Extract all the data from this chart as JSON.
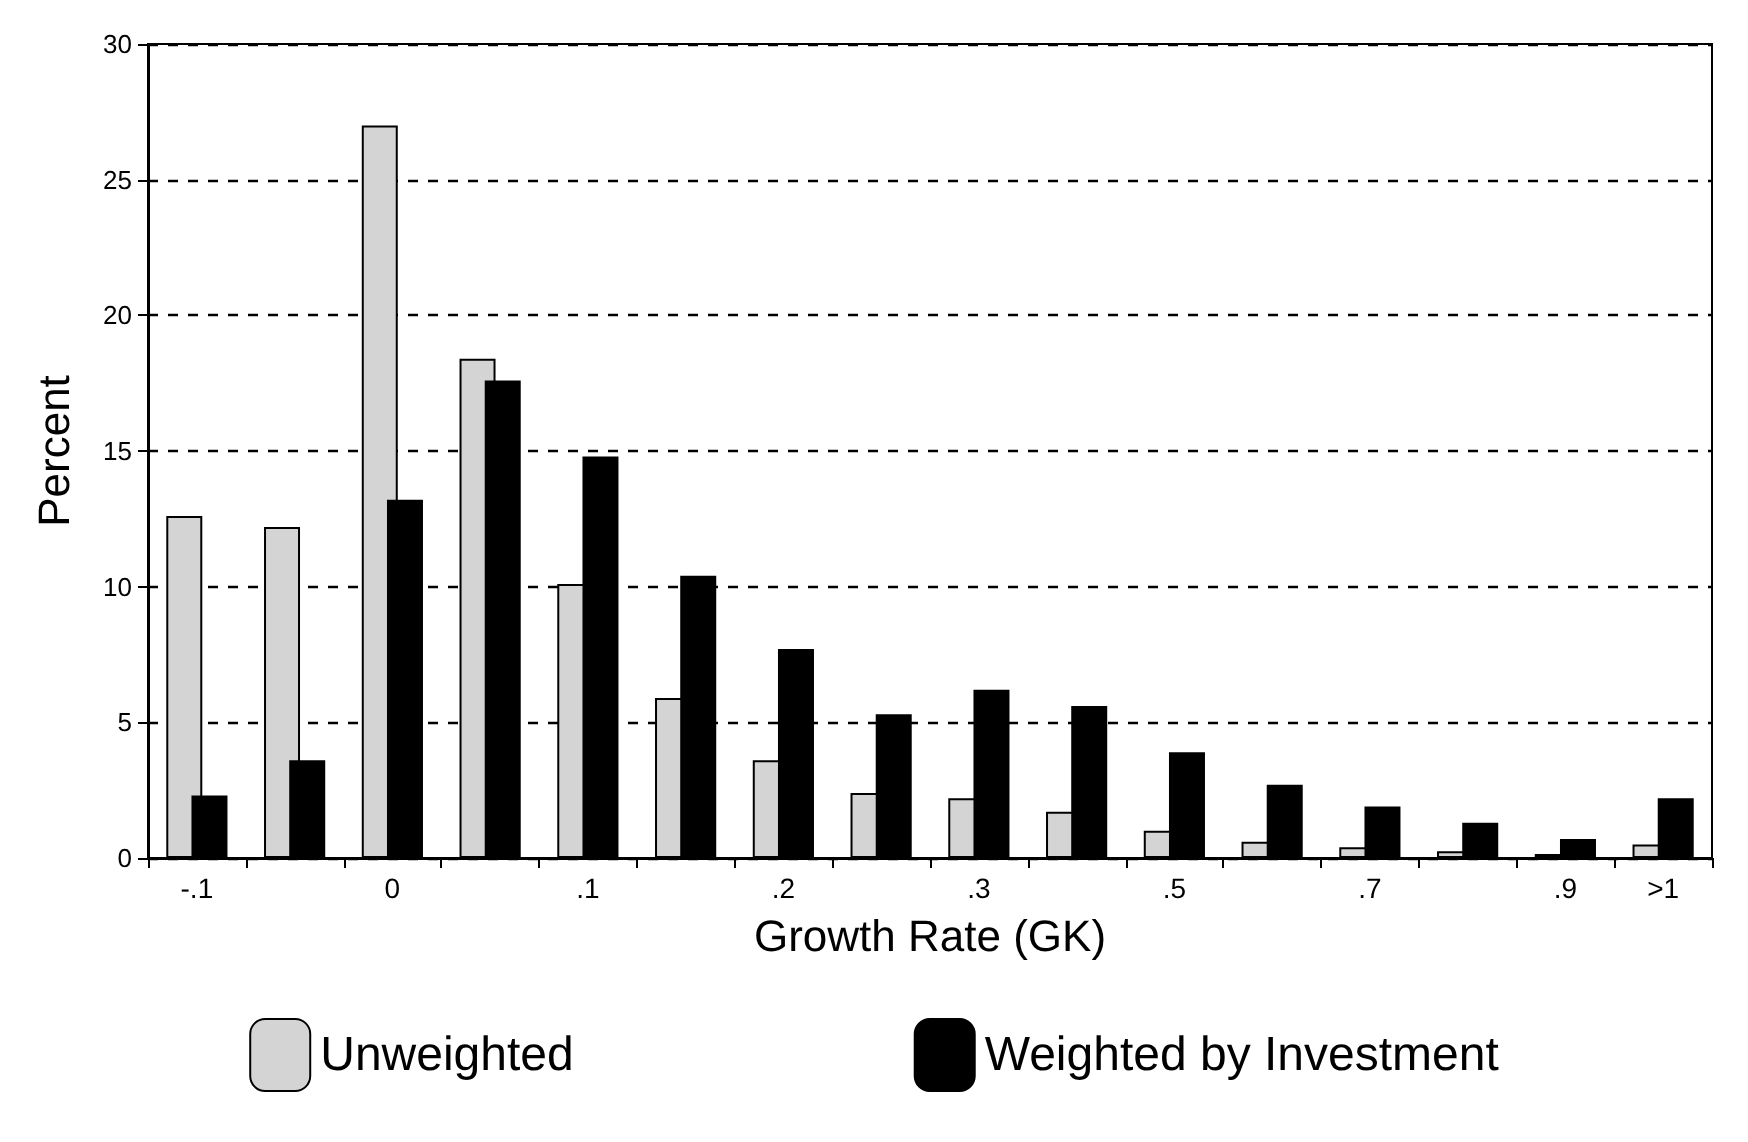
{
  "chart_data": {
    "type": "bar",
    "xlabel": "Growth Rate (GK)",
    "ylabel": "Percent",
    "categories": [
      "-.1",
      null,
      "0",
      null,
      ".1",
      null,
      ".2",
      null,
      ".3",
      null,
      ".5",
      null,
      ".7",
      null,
      ".9",
      ">1"
    ],
    "series": [
      {
        "name": "Unweighted",
        "color": "#d4d4d4",
        "values": [
          12.6,
          12.2,
          27.0,
          18.4,
          10.1,
          5.9,
          3.6,
          2.4,
          2.2,
          1.7,
          1.0,
          0.6,
          0.4,
          0.25,
          0.15,
          0.5
        ]
      },
      {
        "name": "Weighted by Investment",
        "color": "#000000",
        "values": [
          2.3,
          3.6,
          13.2,
          17.6,
          14.8,
          10.4,
          7.7,
          5.3,
          6.2,
          5.6,
          3.9,
          2.7,
          1.9,
          1.3,
          0.7,
          2.2
        ]
      }
    ],
    "ylim": [
      0,
      30
    ],
    "yticks": [
      0,
      5,
      10,
      15,
      20,
      25,
      30
    ],
    "grid": "y",
    "legend": "bottom"
  }
}
